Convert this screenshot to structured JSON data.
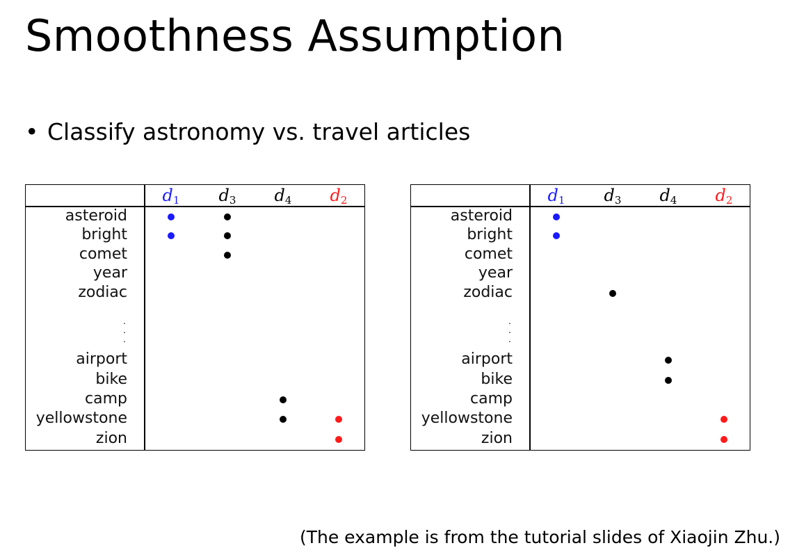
{
  "slide": {
    "title": "Smoothness Assumption",
    "bullet": "Classify astronomy vs. travel articles",
    "caption": "(The example is from the tutorial slides of Xiaojin Zhu.)"
  },
  "colors": {
    "d1": "#1a1aff",
    "d3": "#000000",
    "d4": "#000000",
    "d2": "#ff1a1a"
  },
  "documents": [
    {
      "base": "d",
      "sub": "1"
    },
    {
      "base": "d",
      "sub": "3"
    },
    {
      "base": "d",
      "sub": "4"
    },
    {
      "base": "d",
      "sub": "2"
    }
  ],
  "terms": [
    "asteroid",
    "bright",
    "comet",
    "year",
    "zodiac",
    "airport",
    "bike",
    "camp",
    "yellowstone",
    "zion"
  ],
  "ellipsis": "⋮",
  "matrices": [
    {
      "occurrences": {
        "d1": [
          "asteroid",
          "bright"
        ],
        "d3": [
          "asteroid",
          "bright",
          "comet"
        ],
        "d4": [
          "camp",
          "yellowstone"
        ],
        "d2": [
          "yellowstone",
          "zion"
        ]
      }
    },
    {
      "occurrences": {
        "d1": [
          "asteroid",
          "bright"
        ],
        "d3": [
          "zodiac"
        ],
        "d4": [
          "airport",
          "bike"
        ],
        "d2": [
          "yellowstone",
          "zion"
        ]
      }
    }
  ]
}
